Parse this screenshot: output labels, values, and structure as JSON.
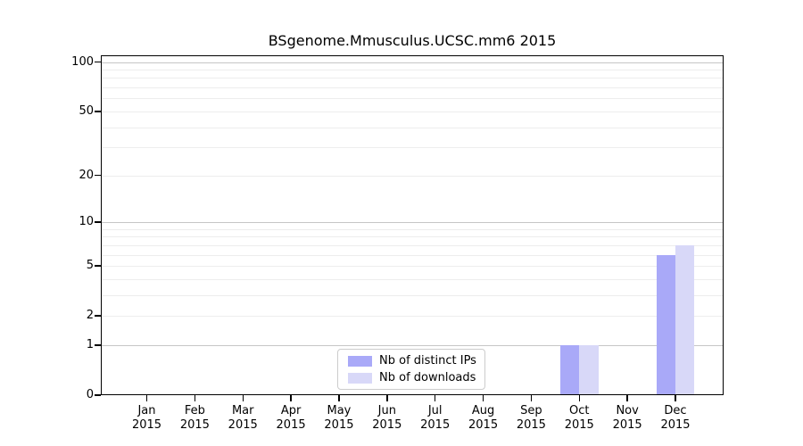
{
  "title": "BSgenome.Mmusculus.UCSC.mm6 2015",
  "chart_data": {
    "type": "bar",
    "title": "BSgenome.Mmusculus.UCSC.mm6 2015",
    "scale": "log1p",
    "categories": [
      "Jan",
      "Feb",
      "Mar",
      "Apr",
      "May",
      "Jun",
      "Jul",
      "Aug",
      "Sep",
      "Oct",
      "Nov",
      "Dec"
    ],
    "year_label": "2015",
    "series": [
      {
        "name": "Nb of distinct IPs",
        "color": "#a9a9f8",
        "values": [
          0,
          0,
          0,
          0,
          0,
          0,
          0,
          0,
          0,
          1,
          0,
          6
        ]
      },
      {
        "name": "Nb of downloads",
        "color": "#d8d8f8",
        "values": [
          0,
          0,
          0,
          0,
          0,
          0,
          0,
          0,
          0,
          1,
          0,
          7
        ]
      }
    ],
    "ytick_labels": [
      0,
      1,
      2,
      5,
      10,
      20,
      50,
      100
    ],
    "major_gridlines": [
      1,
      10,
      100
    ],
    "minor_gridlines": [
      2,
      3,
      4,
      5,
      6,
      7,
      8,
      9,
      20,
      30,
      40,
      50,
      60,
      70,
      80,
      90
    ],
    "ylim": [
      0,
      110
    ],
    "xlabel": "",
    "ylabel": "",
    "grid": "horizontal",
    "legend_position": "lower center"
  }
}
